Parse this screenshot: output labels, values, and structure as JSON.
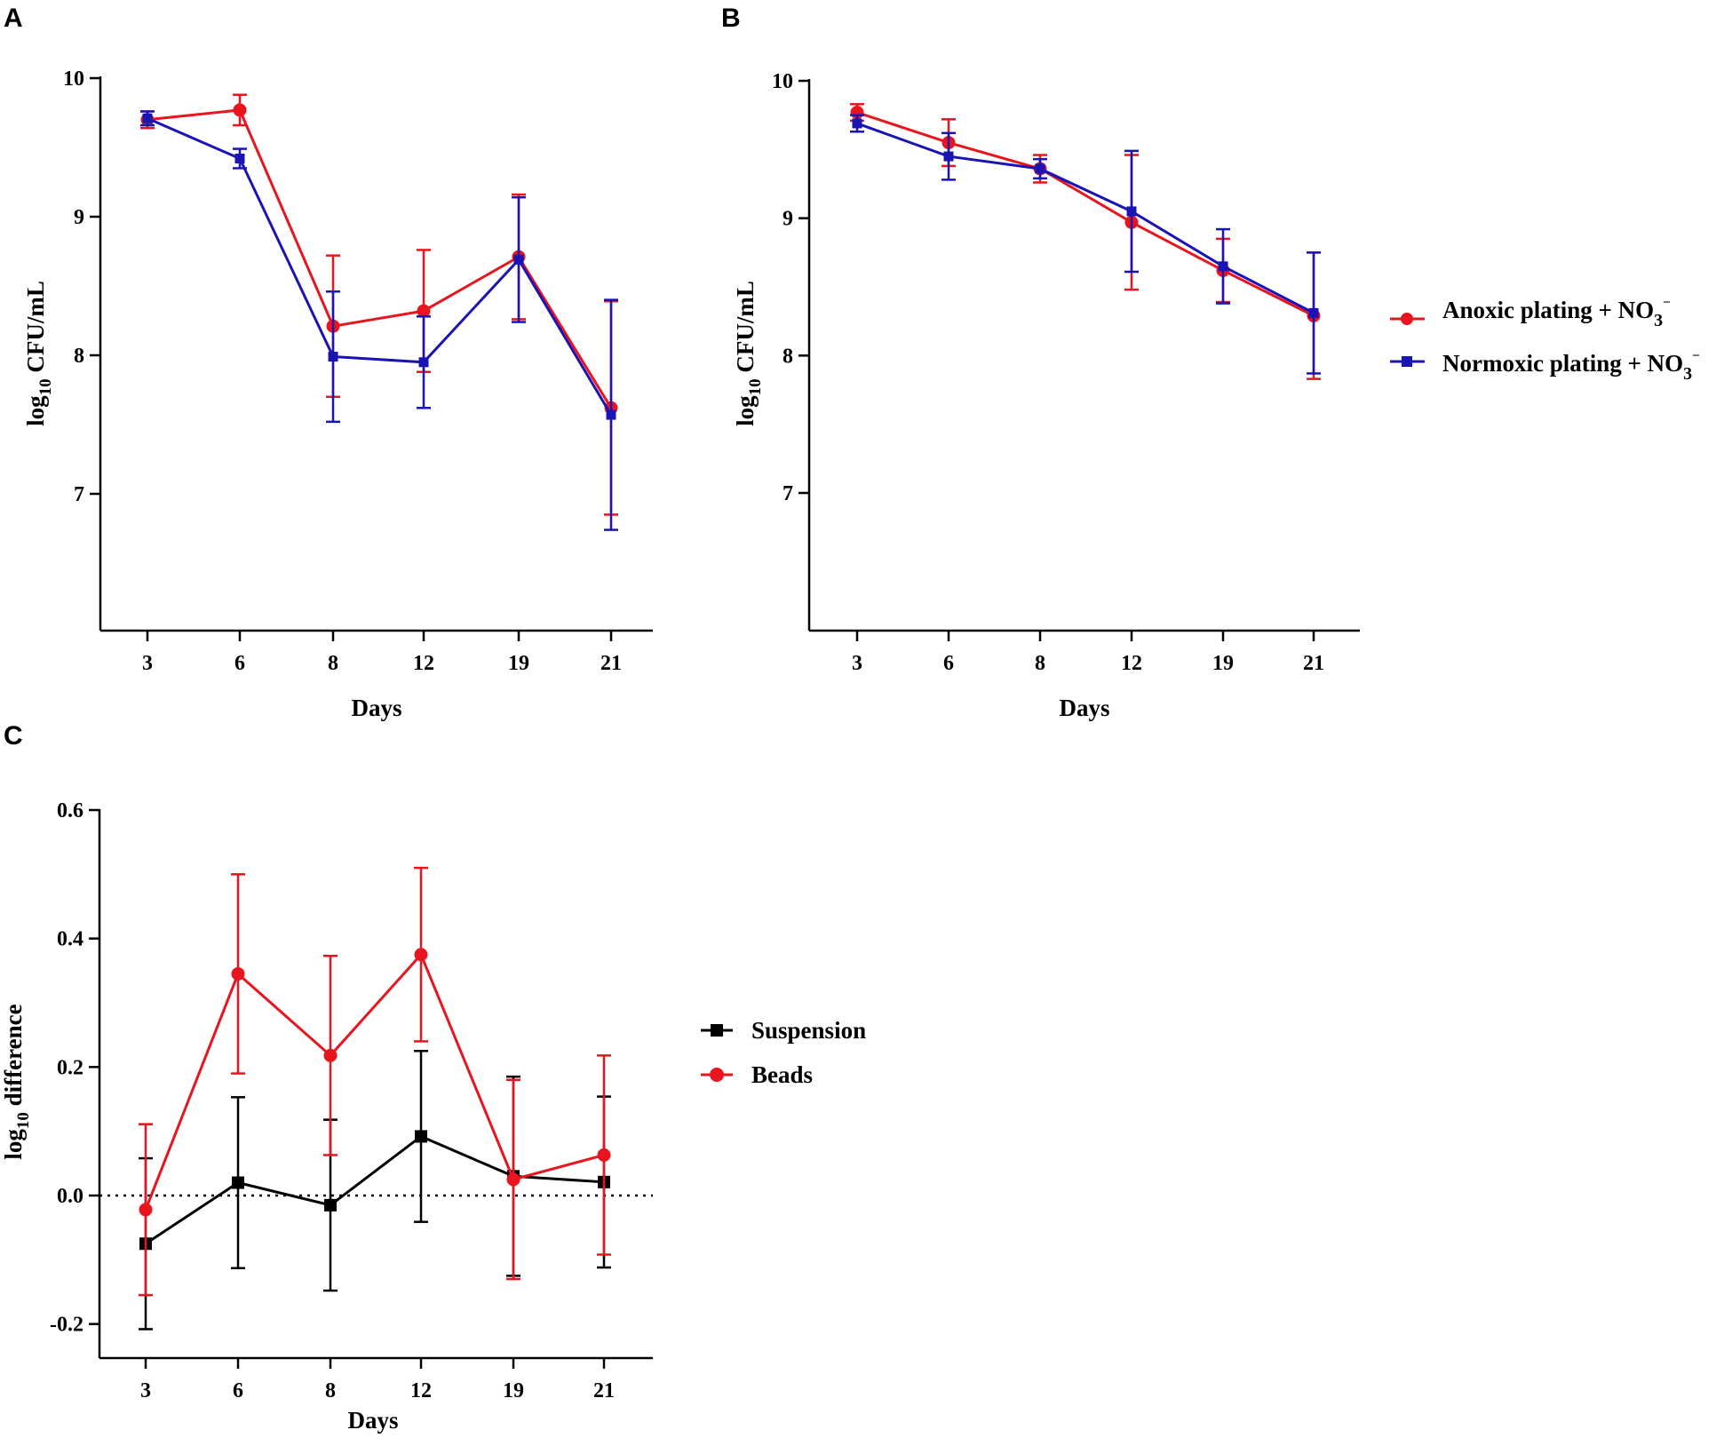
{
  "panel_labels": {
    "a": "A",
    "b": "B",
    "c": "C"
  },
  "legend_ab": {
    "anoxic": {
      "text": "Anoxic plating + NO",
      "sub": "3",
      "sup": "−"
    },
    "normoxic": {
      "text": "Normoxic plating + NO",
      "sub": "3",
      "sup": "−"
    }
  },
  "legend_c": {
    "suspension": "Suspension",
    "beads": "Beads"
  },
  "chart_data": [
    {
      "id": "A",
      "type": "line",
      "categories": [
        "3",
        "6",
        "8",
        "12",
        "19",
        "21"
      ],
      "xlabel": "Days",
      "ylabel": {
        "base": "log",
        "sub": "10",
        "rest": " CFU/mL"
      },
      "ylim": [
        6,
        10
      ],
      "yticks": [
        7,
        8,
        9,
        10
      ],
      "series": [
        {
          "name": "Anoxic plating + NO3-",
          "color": "#e8141e",
          "marker": "circle",
          "values": [
            9.7,
            9.77,
            8.21,
            8.32,
            8.71,
            7.62
          ],
          "errors": [
            0.06,
            0.11,
            0.51,
            0.44,
            0.45,
            0.77
          ]
        },
        {
          "name": "Normoxic plating + NO3-",
          "color": "#1a14b4",
          "marker": "square",
          "values": [
            9.71,
            9.42,
            7.99,
            7.95,
            8.69,
            7.57
          ],
          "errors": [
            0.05,
            0.07,
            0.47,
            0.33,
            0.45,
            0.83
          ]
        }
      ]
    },
    {
      "id": "B",
      "type": "line",
      "categories": [
        "3",
        "6",
        "8",
        "12",
        "19",
        "21"
      ],
      "xlabel": "Days",
      "ylabel": {
        "base": "log",
        "sub": "10",
        "rest": " CFU/mL"
      },
      "ylim": [
        6,
        10
      ],
      "yticks": [
        7,
        8,
        9,
        10
      ],
      "series": [
        {
          "name": "Anoxic plating + NO3-",
          "color": "#e8141e",
          "marker": "circle",
          "values": [
            9.77,
            9.55,
            9.36,
            8.97,
            8.62,
            8.29
          ],
          "errors": [
            0.06,
            0.17,
            0.1,
            0.49,
            0.23,
            0.46
          ]
        },
        {
          "name": "Normoxic plating + NO3-",
          "color": "#1a14b4",
          "marker": "square",
          "values": [
            9.69,
            9.45,
            9.36,
            9.05,
            8.65,
            8.31
          ],
          "errors": [
            0.06,
            0.17,
            0.07,
            0.44,
            0.27,
            0.44
          ]
        }
      ]
    },
    {
      "id": "C",
      "type": "line",
      "categories": [
        "3",
        "6",
        "8",
        "12",
        "19",
        "21"
      ],
      "xlabel": "Days",
      "ylabel": {
        "base": "log",
        "sub": "10",
        "rest": " difference"
      },
      "ylim": [
        -0.25,
        0.6
      ],
      "yticks": [
        -0.2,
        0.0,
        0.2,
        0.4,
        0.6
      ],
      "ytick_labels": [
        "-0.2",
        "0.0",
        "0.2",
        "0.4",
        "0.6"
      ],
      "reference_line": 0,
      "series": [
        {
          "name": "Suspension",
          "color": "#000000",
          "marker": "square",
          "values": [
            -0.075,
            0.02,
            -0.015,
            0.092,
            0.03,
            0.021
          ],
          "errors": [
            0.133,
            0.133,
            0.133,
            0.133,
            0.155,
            0.133
          ]
        },
        {
          "name": "Beads",
          "color": "#e8141e",
          "marker": "circle",
          "values": [
            -0.022,
            0.345,
            0.218,
            0.375,
            0.025,
            0.063
          ],
          "errors": [
            0.133,
            0.155,
            0.155,
            0.135,
            0.155,
            0.155
          ]
        }
      ]
    }
  ]
}
